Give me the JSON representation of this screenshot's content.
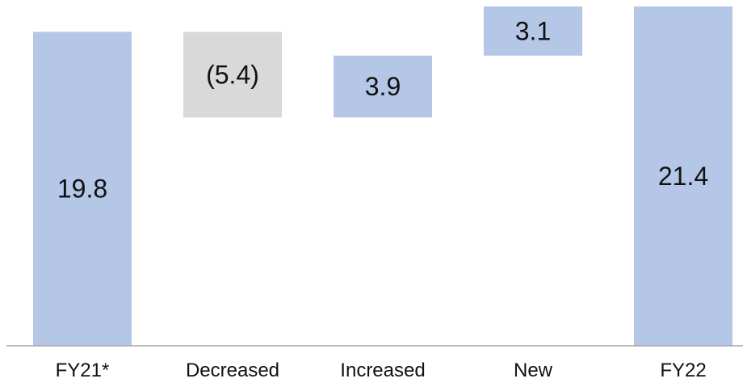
{
  "chart_data": {
    "type": "bar",
    "subtype": "waterfall",
    "categories": [
      "FY21*",
      "Decreased",
      "Increased",
      "New",
      "FY22"
    ],
    "values": [
      19.8,
      -5.4,
      3.9,
      3.1,
      21.4
    ],
    "data_labels": [
      "19.8",
      "(5.4)",
      "3.9",
      "3.1",
      "21.4"
    ],
    "bar_kinds": [
      "total",
      "decrease",
      "increase",
      "increase",
      "total"
    ],
    "title": "",
    "xlabel": "",
    "ylabel": "",
    "ylim": [
      0,
      21.4
    ],
    "grid": false,
    "legend": "none",
    "colors": {
      "total": "#b4c7e7",
      "increase": "#b4c7e7",
      "decrease": "#d9d9d9",
      "axis": "#a6a6a6",
      "text": "#111111"
    }
  }
}
